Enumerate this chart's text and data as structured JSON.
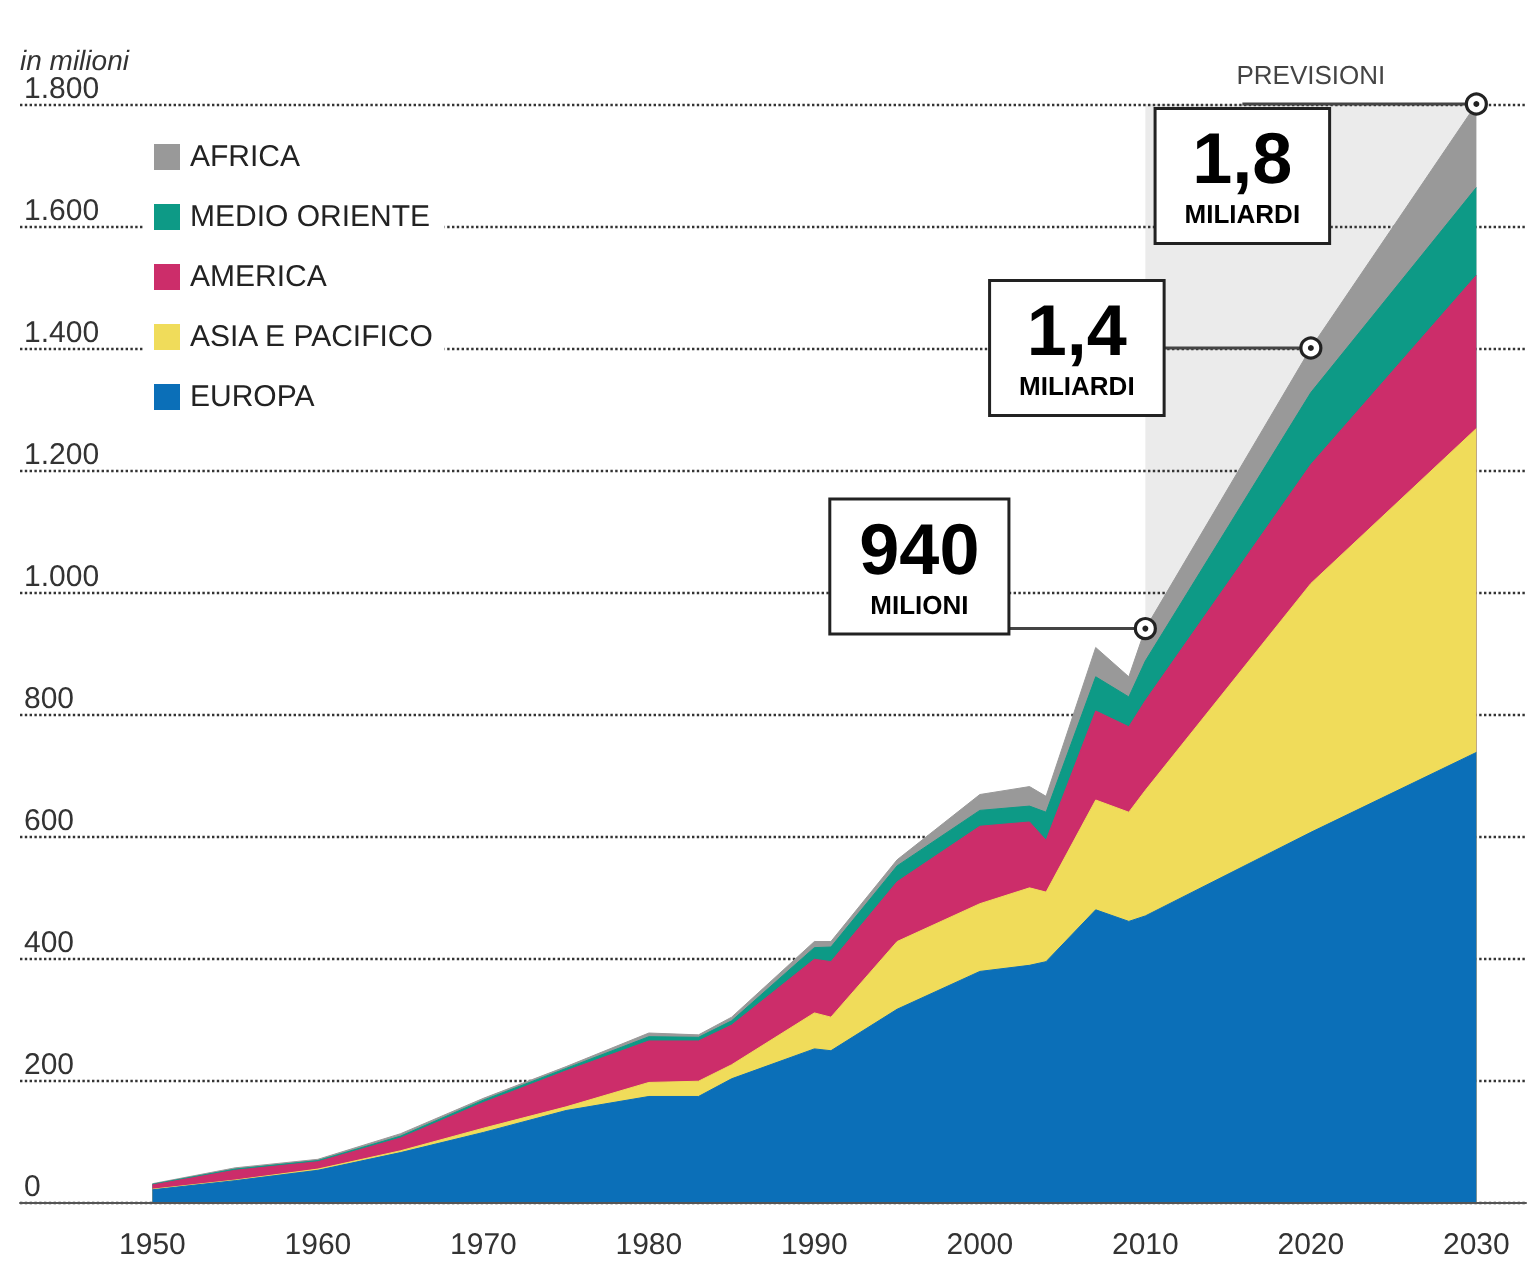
{
  "chart_data": {
    "type": "area",
    "stacked": true,
    "ylabel": "in milioni",
    "x": [
      1950,
      1955,
      1960,
      1965,
      1970,
      1975,
      1980,
      1983,
      1985,
      1990,
      1991,
      1995,
      2000,
      2003,
      2004,
      2007,
      2009,
      2010,
      2020,
      2030
    ],
    "series": [
      {
        "name": "EUROPA",
        "color": "#0b6fb8",
        "values": [
          20,
          35,
          52,
          81,
          114,
          150,
          173,
          173,
          202,
          251,
          248,
          316,
          378,
          388,
          394,
          479,
          460,
          469,
          606,
          737
        ]
      },
      {
        "name": "ASIA E PACIFICO",
        "color": "#f0dc5a",
        "values": [
          1,
          1,
          2,
          3,
          7,
          6,
          23,
          25,
          23,
          59,
          55,
          111,
          111,
          127,
          114,
          180,
          179,
          206,
          408,
          531
        ]
      },
      {
        "name": "AMERICA",
        "color": "#cc2d6a",
        "values": [
          7,
          16,
          12,
          21,
          42,
          59,
          68,
          66,
          65,
          88,
          91,
          98,
          127,
          108,
          85,
          146,
          140,
          147,
          195,
          251
        ]
      },
      {
        "name": "MEDIO ORIENTE",
        "color": "#0d9a86",
        "values": [
          1,
          2,
          2,
          3,
          4,
          4,
          7,
          6,
          7,
          19,
          24,
          26,
          26,
          26,
          46,
          56,
          49,
          65,
          118,
          144
        ]
      },
      {
        "name": "AFRICA",
        "color": "#999999",
        "values": [
          1,
          2,
          2,
          4,
          3,
          3,
          6,
          4,
          6,
          10,
          9,
          10,
          26,
          32,
          26,
          48,
          33,
          53,
          73,
          137
        ]
      }
    ],
    "xlim": [
      1942,
      2033
    ],
    "xticks": [
      1950,
      1960,
      1970,
      1980,
      1990,
      2000,
      2010,
      2020,
      2030
    ],
    "ylim": [
      0,
      1800
    ],
    "yticks": [
      0,
      200,
      400,
      600,
      800,
      {
        "value": 1000,
        "label": "1.000"
      },
      {
        "value": 1200,
        "label": "1.200"
      },
      {
        "value": 1400,
        "label": "1.400"
      },
      {
        "value": 1600,
        "label": "1.600"
      },
      {
        "value": 1800,
        "label": "1.800"
      }
    ],
    "bands": [
      {
        "axis": "x",
        "from": 2010,
        "to": 2030,
        "label": "PREVISIONI",
        "color": "#ebebeb"
      }
    ],
    "annotations": [
      {
        "text": "940\nMILIONI",
        "x": 2010,
        "y": 940
      },
      {
        "text": "1,4\nMILIARDI",
        "x": 2020,
        "y": 1400
      },
      {
        "text": "1,8\nMILIARDI",
        "x": 2030,
        "y": 1800
      }
    ],
    "grid": "y",
    "legend": "top left",
    "marker": "none"
  }
}
